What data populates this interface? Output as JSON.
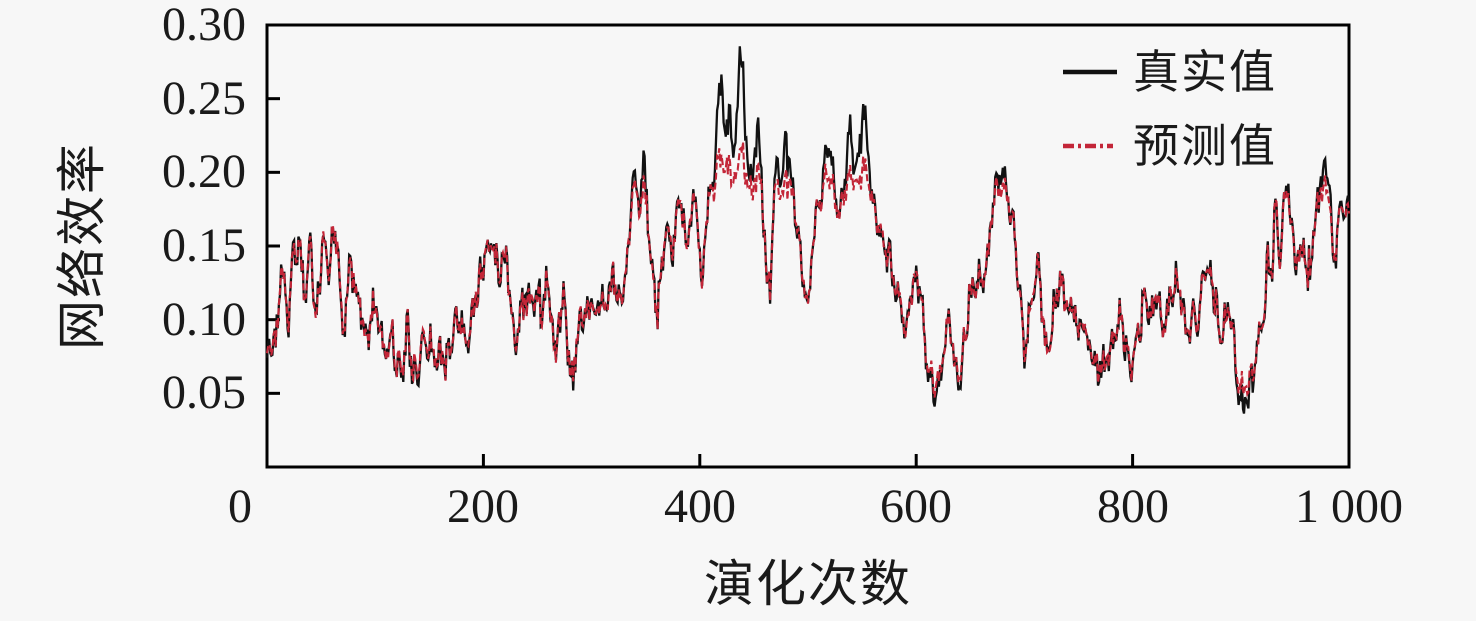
{
  "figure": {
    "background": "#f7f7f7",
    "frame_color": "#000000",
    "y_ticks": [
      "0.30",
      "0.25",
      "0.20",
      "0.15",
      "0.10",
      "0.05"
    ],
    "x_ticks": [
      "0",
      "200",
      "400",
      "600",
      "800",
      "1 000"
    ],
    "ylabel": "网络效率",
    "xlabel": "演化次数"
  },
  "legend": [
    {
      "label": "真实值",
      "color": "#111111",
      "style": "solid"
    },
    {
      "label": "预测值",
      "color": "#c32638",
      "style": "dash-dot"
    }
  ],
  "chart_data": {
    "type": "line",
    "title": "",
    "xlabel": "演化次数",
    "ylabel": "网络效率",
    "xlim": [
      0,
      1000
    ],
    "ylim": [
      0,
      0.3
    ],
    "x_tick_values": [
      0,
      200,
      400,
      600,
      800,
      1000
    ],
    "y_tick_values": [
      0.05,
      0.1,
      0.15,
      0.2,
      0.25,
      0.3
    ],
    "grid": false,
    "legend_position": "upper-right-inside",
    "x": [
      0,
      8,
      14,
      20,
      25,
      30,
      35,
      40,
      45,
      52,
      57,
      60,
      65,
      71,
      75,
      80,
      86,
      92,
      97,
      100,
      105,
      110,
      115,
      120,
      125,
      130,
      135,
      139,
      145,
      150,
      155,
      160,
      165,
      170,
      175,
      180,
      185,
      190,
      195,
      200,
      205,
      210,
      215,
      218,
      222,
      226,
      230,
      235,
      240,
      245,
      250,
      255,
      258,
      262,
      266,
      270,
      275,
      280,
      283,
      287,
      290,
      295,
      300,
      305,
      310,
      315,
      320,
      325,
      330,
      335,
      338,
      343,
      348,
      352,
      356,
      361,
      365,
      370,
      375,
      382,
      388,
      393,
      397,
      402,
      407,
      411,
      415,
      420,
      424,
      428,
      432,
      437,
      440,
      443,
      446,
      450,
      454,
      458,
      462,
      465,
      468,
      472,
      476,
      479,
      483,
      487,
      490,
      495,
      500,
      505,
      510,
      515,
      520,
      524,
      528,
      532,
      536,
      539,
      543,
      547,
      551,
      555,
      558,
      562,
      566,
      570,
      575,
      580,
      585,
      590,
      595,
      601,
      606,
      610,
      615,
      620,
      625,
      629,
      634,
      640,
      645,
      650,
      654,
      658,
      662,
      666,
      671,
      675,
      679,
      684,
      690,
      694,
      698,
      701,
      705,
      709,
      713,
      717,
      721,
      725,
      729,
      733,
      737,
      741,
      745,
      749,
      753,
      757,
      761,
      765,
      770,
      775,
      780,
      784,
      788,
      792,
      797,
      800,
      805,
      809,
      813,
      817,
      822,
      826,
      830,
      835,
      841,
      845,
      850,
      855,
      860,
      865,
      869,
      874,
      881,
      885,
      890,
      894,
      898,
      903,
      907,
      911,
      915,
      921,
      925,
      929,
      932,
      936,
      940,
      943,
      947,
      952,
      955,
      958,
      962,
      966,
      970,
      973,
      976,
      981,
      985,
      988,
      991,
      994,
      997,
      1000
    ],
    "series": [
      {
        "name": "真实值",
        "color": "#111111",
        "line_style": "solid",
        "y": [
          0.078,
          0.082,
          0.14,
          0.1,
          0.15,
          0.145,
          0.113,
          0.158,
          0.093,
          0.163,
          0.125,
          0.16,
          0.152,
          0.089,
          0.128,
          0.13,
          0.11,
          0.082,
          0.107,
          0.11,
          0.09,
          0.071,
          0.096,
          0.068,
          0.064,
          0.095,
          0.061,
          0.058,
          0.093,
          0.085,
          0.075,
          0.08,
          0.07,
          0.082,
          0.095,
          0.1,
          0.09,
          0.105,
          0.12,
          0.14,
          0.152,
          0.148,
          0.13,
          0.148,
          0.135,
          0.1,
          0.088,
          0.11,
          0.113,
          0.118,
          0.115,
          0.1,
          0.128,
          0.105,
          0.073,
          0.1,
          0.108,
          0.065,
          0.064,
          0.09,
          0.102,
          0.1,
          0.112,
          0.1,
          0.112,
          0.105,
          0.127,
          0.12,
          0.12,
          0.16,
          0.197,
          0.175,
          0.213,
          0.17,
          0.135,
          0.107,
          0.14,
          0.161,
          0.15,
          0.186,
          0.141,
          0.181,
          0.175,
          0.123,
          0.175,
          0.185,
          0.22,
          0.266,
          0.215,
          0.244,
          0.205,
          0.285,
          0.26,
          0.22,
          0.19,
          0.21,
          0.228,
          0.185,
          0.128,
          0.12,
          0.18,
          0.21,
          0.195,
          0.23,
          0.2,
          0.185,
          0.165,
          0.13,
          0.115,
          0.15,
          0.18,
          0.2,
          0.221,
          0.195,
          0.17,
          0.185,
          0.21,
          0.229,
          0.2,
          0.215,
          0.238,
          0.225,
          0.19,
          0.17,
          0.163,
          0.152,
          0.14,
          0.128,
          0.11,
          0.093,
          0.118,
          0.132,
          0.1,
          0.065,
          0.055,
          0.05,
          0.08,
          0.102,
          0.077,
          0.052,
          0.09,
          0.123,
          0.11,
          0.13,
          0.125,
          0.14,
          0.177,
          0.19,
          0.2,
          0.185,
          0.163,
          0.13,
          0.09,
          0.078,
          0.1,
          0.13,
          0.136,
          0.1,
          0.068,
          0.095,
          0.115,
          0.123,
          0.11,
          0.108,
          0.118,
          0.091,
          0.1,
          0.092,
          0.08,
          0.072,
          0.066,
          0.07,
          0.08,
          0.092,
          0.102,
          0.09,
          0.061,
          0.065,
          0.088,
          0.105,
          0.109,
          0.1,
          0.116,
          0.105,
          0.092,
          0.118,
          0.129,
          0.112,
          0.091,
          0.102,
          0.098,
          0.125,
          0.139,
          0.125,
          0.091,
          0.1,
          0.105,
          0.08,
          0.055,
          0.039,
          0.048,
          0.058,
          0.078,
          0.102,
          0.141,
          0.13,
          0.184,
          0.136,
          0.175,
          0.195,
          0.16,
          0.136,
          0.148,
          0.154,
          0.123,
          0.15,
          0.175,
          0.19,
          0.204,
          0.206,
          0.141,
          0.15,
          0.165,
          0.175,
          0.17,
          0.18
        ]
      },
      {
        "name": "预测值",
        "color": "#c32638",
        "line_style": "dash-dot",
        "y": [
          0.078,
          0.082,
          0.14,
          0.1,
          0.15,
          0.145,
          0.113,
          0.158,
          0.093,
          0.163,
          0.125,
          0.16,
          0.152,
          0.089,
          0.128,
          0.13,
          0.11,
          0.082,
          0.107,
          0.11,
          0.09,
          0.071,
          0.096,
          0.069,
          0.066,
          0.095,
          0.064,
          0.062,
          0.093,
          0.085,
          0.075,
          0.08,
          0.07,
          0.082,
          0.095,
          0.1,
          0.09,
          0.105,
          0.12,
          0.14,
          0.152,
          0.148,
          0.13,
          0.148,
          0.135,
          0.1,
          0.088,
          0.11,
          0.113,
          0.118,
          0.115,
          0.1,
          0.128,
          0.105,
          0.073,
          0.1,
          0.108,
          0.067,
          0.066,
          0.09,
          0.102,
          0.1,
          0.112,
          0.1,
          0.112,
          0.105,
          0.127,
          0.12,
          0.12,
          0.16,
          0.189,
          0.175,
          0.194,
          0.17,
          0.135,
          0.107,
          0.14,
          0.161,
          0.15,
          0.185,
          0.141,
          0.181,
          0.175,
          0.123,
          0.175,
          0.185,
          0.196,
          0.211,
          0.195,
          0.204,
          0.191,
          0.217,
          0.209,
          0.196,
          0.187,
          0.193,
          0.199,
          0.185,
          0.128,
          0.12,
          0.18,
          0.193,
          0.188,
          0.199,
          0.19,
          0.185,
          0.165,
          0.13,
          0.115,
          0.15,
          0.18,
          0.19,
          0.197,
          0.188,
          0.17,
          0.185,
          0.193,
          0.199,
          0.19,
          0.195,
          0.202,
          0.198,
          0.187,
          0.17,
          0.163,
          0.152,
          0.14,
          0.128,
          0.11,
          0.093,
          0.118,
          0.132,
          0.1,
          0.067,
          0.06,
          0.057,
          0.08,
          0.102,
          0.077,
          0.058,
          0.09,
          0.123,
          0.11,
          0.13,
          0.125,
          0.14,
          0.177,
          0.187,
          0.19,
          0.185,
          0.163,
          0.13,
          0.09,
          0.078,
          0.1,
          0.13,
          0.136,
          0.1,
          0.069,
          0.095,
          0.115,
          0.123,
          0.11,
          0.108,
          0.118,
          0.091,
          0.1,
          0.092,
          0.08,
          0.072,
          0.067,
          0.07,
          0.08,
          0.092,
          0.102,
          0.09,
          0.064,
          0.067,
          0.088,
          0.105,
          0.109,
          0.1,
          0.116,
          0.105,
          0.092,
          0.118,
          0.129,
          0.112,
          0.091,
          0.102,
          0.098,
          0.125,
          0.139,
          0.125,
          0.091,
          0.1,
          0.105,
          0.08,
          0.06,
          0.05,
          0.056,
          0.062,
          0.078,
          0.102,
          0.141,
          0.13,
          0.184,
          0.136,
          0.175,
          0.188,
          0.16,
          0.136,
          0.148,
          0.154,
          0.123,
          0.15,
          0.175,
          0.187,
          0.191,
          0.192,
          0.141,
          0.15,
          0.165,
          0.175,
          0.17,
          0.175
        ]
      }
    ]
  }
}
